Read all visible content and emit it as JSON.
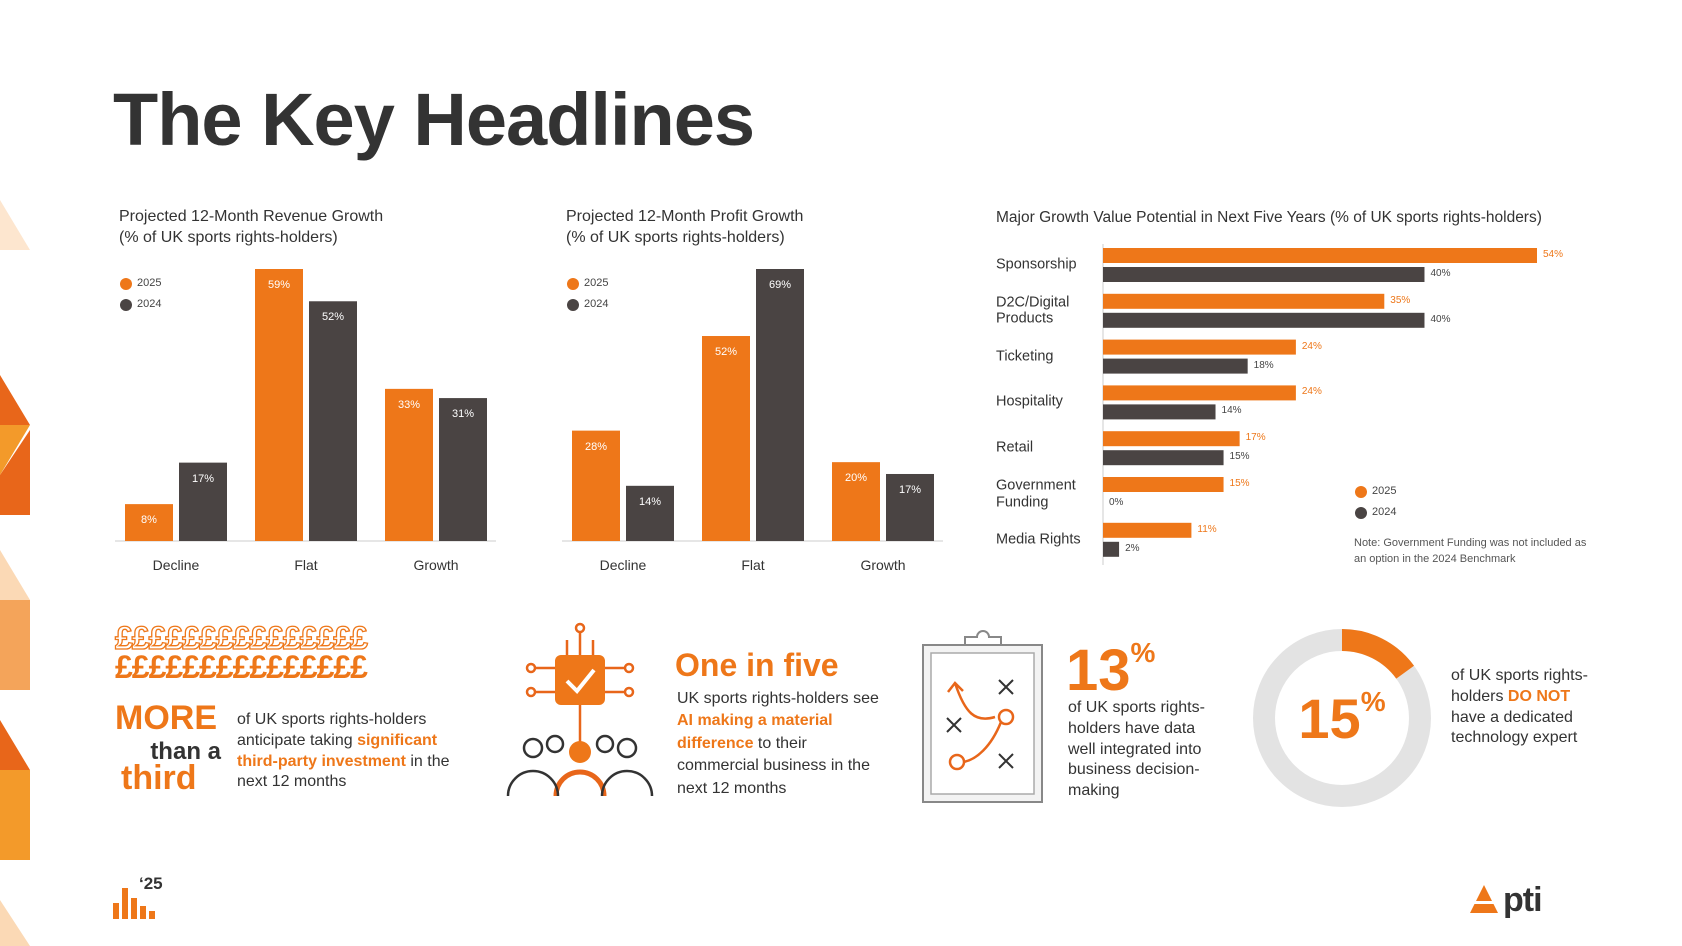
{
  "title": "The Key Headlines",
  "chart_data": [
    {
      "type": "bar",
      "title": "Projected 12-Month Revenue Growth",
      "subtitle": "(% of UK sports rights-holders)",
      "categories": [
        "Decline",
        "Flat",
        "Growth"
      ],
      "series": [
        {
          "name": "2025",
          "color": "#ee7719",
          "values": [
            8,
            59,
            33
          ],
          "value_labels": [
            "8%",
            "59%",
            "33%"
          ]
        },
        {
          "name": "2024",
          "color": "#4a4443",
          "values": [
            17,
            52,
            31
          ],
          "value_labels": [
            "17%",
            "52%",
            "31%"
          ]
        }
      ]
    },
    {
      "type": "bar",
      "title": "Projected 12-Month Profit Growth",
      "subtitle": "(% of UK sports rights-holders)",
      "categories": [
        "Decline",
        "Flat",
        "Growth"
      ],
      "series": [
        {
          "name": "2025",
          "color": "#ee7719",
          "values": [
            28,
            52,
            20
          ],
          "value_labels": [
            "28%",
            "52%",
            "20%"
          ]
        },
        {
          "name": "2024",
          "color": "#4a4443",
          "values": [
            14,
            69,
            17
          ],
          "value_labels": [
            "14%",
            "69%",
            "17%"
          ]
        }
      ]
    },
    {
      "type": "hbar",
      "title": "Major Growth Value Potential in Next Five Years (% of UK sports rights-holders)",
      "categories": [
        "Sponsorship",
        "D2C/Digital Products",
        "Ticketing",
        "Hospitality",
        "Retail",
        "Government Funding",
        "Media Rights"
      ],
      "series": [
        {
          "name": "2025",
          "color": "#ee7719",
          "values": [
            54,
            35,
            24,
            24,
            17,
            15,
            11
          ],
          "value_labels": [
            "54%",
            "35%",
            "24%",
            "24%",
            "17%",
            "15%",
            "11%"
          ]
        },
        {
          "name": "2024",
          "color": "#4a4443",
          "values": [
            40,
            40,
            18,
            14,
            15,
            0,
            2
          ],
          "value_labels": [
            "40%",
            "40%",
            "18%",
            "14%",
            "15%",
            "0%",
            "2%"
          ]
        }
      ],
      "note": "Note: Government Funding was not included as an option in the 2024 Benchmark"
    }
  ],
  "highlights": [
    {
      "icon_text": "£££££££££££££££",
      "stat": [
        "MORE",
        "than a",
        "third"
      ],
      "body": [
        {
          "text": "of UK sports rights-holders anticipate taking ",
          "highlight": false
        },
        {
          "text": "significant third-party investment",
          "highlight": true
        },
        {
          "text": " in the next 12 months",
          "highlight": false
        }
      ]
    },
    {
      "stat": "One in five",
      "body": [
        {
          "text": "UK sports rights-holders see ",
          "highlight": false
        },
        {
          "text": "AI making a material difference",
          "highlight": true
        },
        {
          "text": " to their commercial business in the next 12 months",
          "highlight": false
        }
      ]
    },
    {
      "stat": "13",
      "stat_unit": "%",
      "body": [
        {
          "text": "of UK sports rights-holders have data well integrated into business decision-making",
          "highlight": false
        }
      ]
    },
    {
      "value": 15,
      "label": "15",
      "unit": "%",
      "color": "#ee7719",
      "body": [
        {
          "text": "of UK sports rights-holders ",
          "highlight": false
        },
        {
          "text": "DO NOT",
          "highlight": true
        },
        {
          "text": " have a dedicated technology expert",
          "highlight": false
        }
      ]
    }
  ],
  "footer": {
    "edition": "‘25",
    "brand": "pti"
  }
}
